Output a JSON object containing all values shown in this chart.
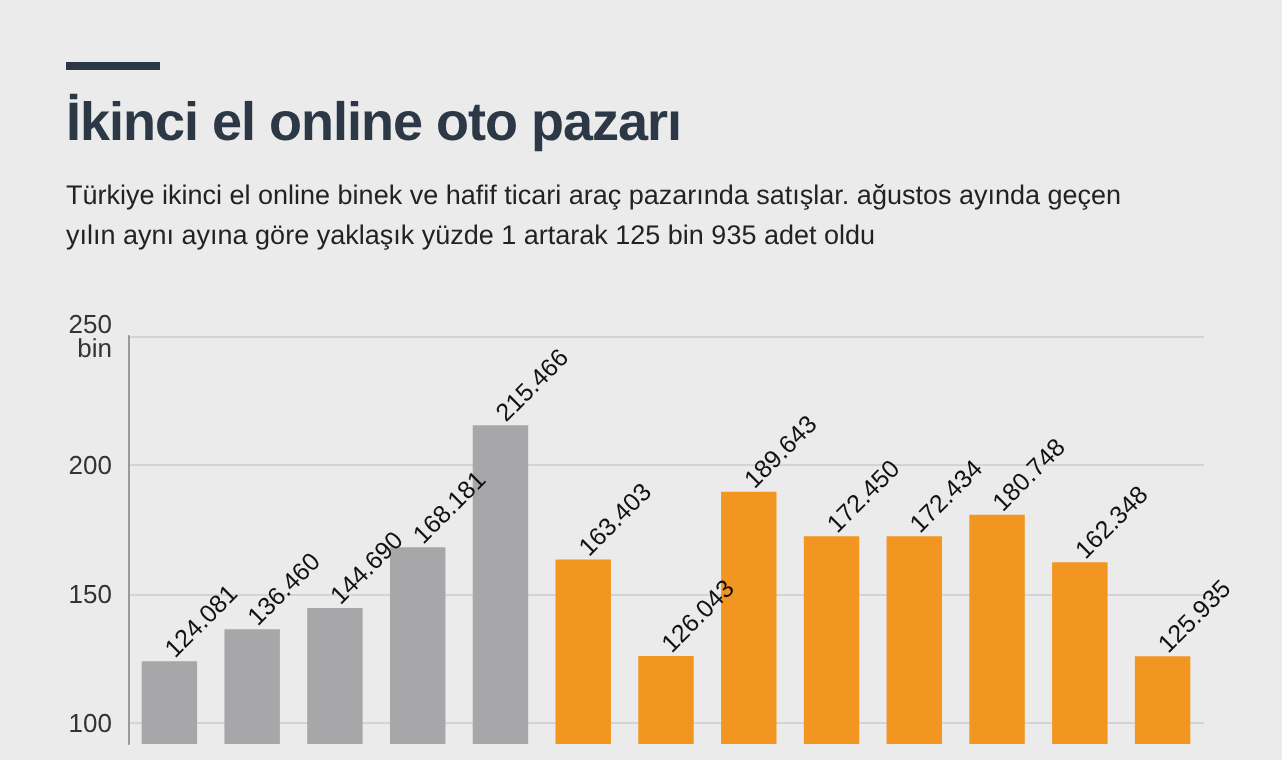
{
  "chart_data": {
    "type": "bar",
    "title": "İkinci el online oto pazarı",
    "subtitle": "Türkiye ikinci el online binek ve hafif ticari araç pazarında satışlar. ağustos ayında geçen yılın aynı ayına göre yaklaşık yüzde 1 artarak 125 bin 935 adet oldu",
    "categories": [
      null,
      null,
      null,
      null,
      null,
      null,
      null,
      null,
      null,
      null,
      null,
      null,
      null
    ],
    "values": [
      124.081,
      136.46,
      144.69,
      168.181,
      215.466,
      163.403,
      126.043,
      189.643,
      172.45,
      172.434,
      180.748,
      162.348,
      125.935
    ],
    "value_labels": [
      "124.081",
      "136.460",
      "144.690",
      "168.181",
      "215.466",
      "163.403",
      "126.043",
      "189.643",
      "172.450",
      "172.434",
      "180.748",
      "162.348",
      "125.935"
    ],
    "colors": [
      "#a7a7a9",
      "#a7a7a9",
      "#a7a7a9",
      "#a7a7a9",
      "#a7a7a9",
      "#f39621",
      "#f39621",
      "#f39621",
      "#f39621",
      "#f39621",
      "#f39621",
      "#f39621",
      "#f39621"
    ],
    "ylim": [
      92,
      250
    ],
    "yticks": [
      100,
      150,
      200,
      {
        "value": 250,
        "label": "250\nbin"
      }
    ],
    "grid": "y"
  }
}
